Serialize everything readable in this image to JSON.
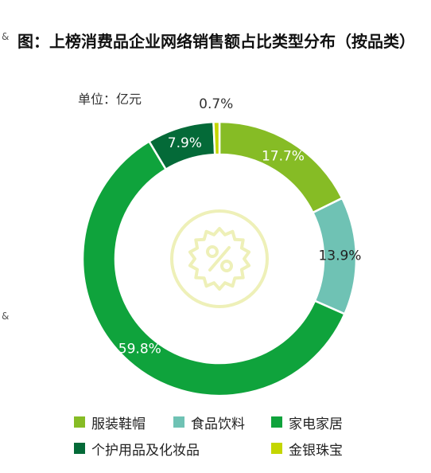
{
  "edge_marks": [
    "&",
    "&"
  ],
  "chart_data": {
    "type": "pie",
    "title": "图：上榜消费品企业网络销售额占比类型分布（按品类）",
    "unit": "单位：亿元",
    "categories": [
      "服装鞋帽",
      "食品饮料",
      "家电家居",
      "个护用品及化妆品",
      "金银珠宝"
    ],
    "values": [
      17.7,
      13.9,
      59.8,
      7.9,
      0.7
    ],
    "data_labels": [
      "17.7%",
      "13.9%",
      "59.8%",
      "7.9%",
      "0.7%"
    ],
    "colors": [
      "#86bc25",
      "#6fc2b4",
      "#0fa33c",
      "#046a38",
      "#c4d600"
    ],
    "legend_position": "bottom",
    "center_icon": "percent-badge-icon"
  }
}
